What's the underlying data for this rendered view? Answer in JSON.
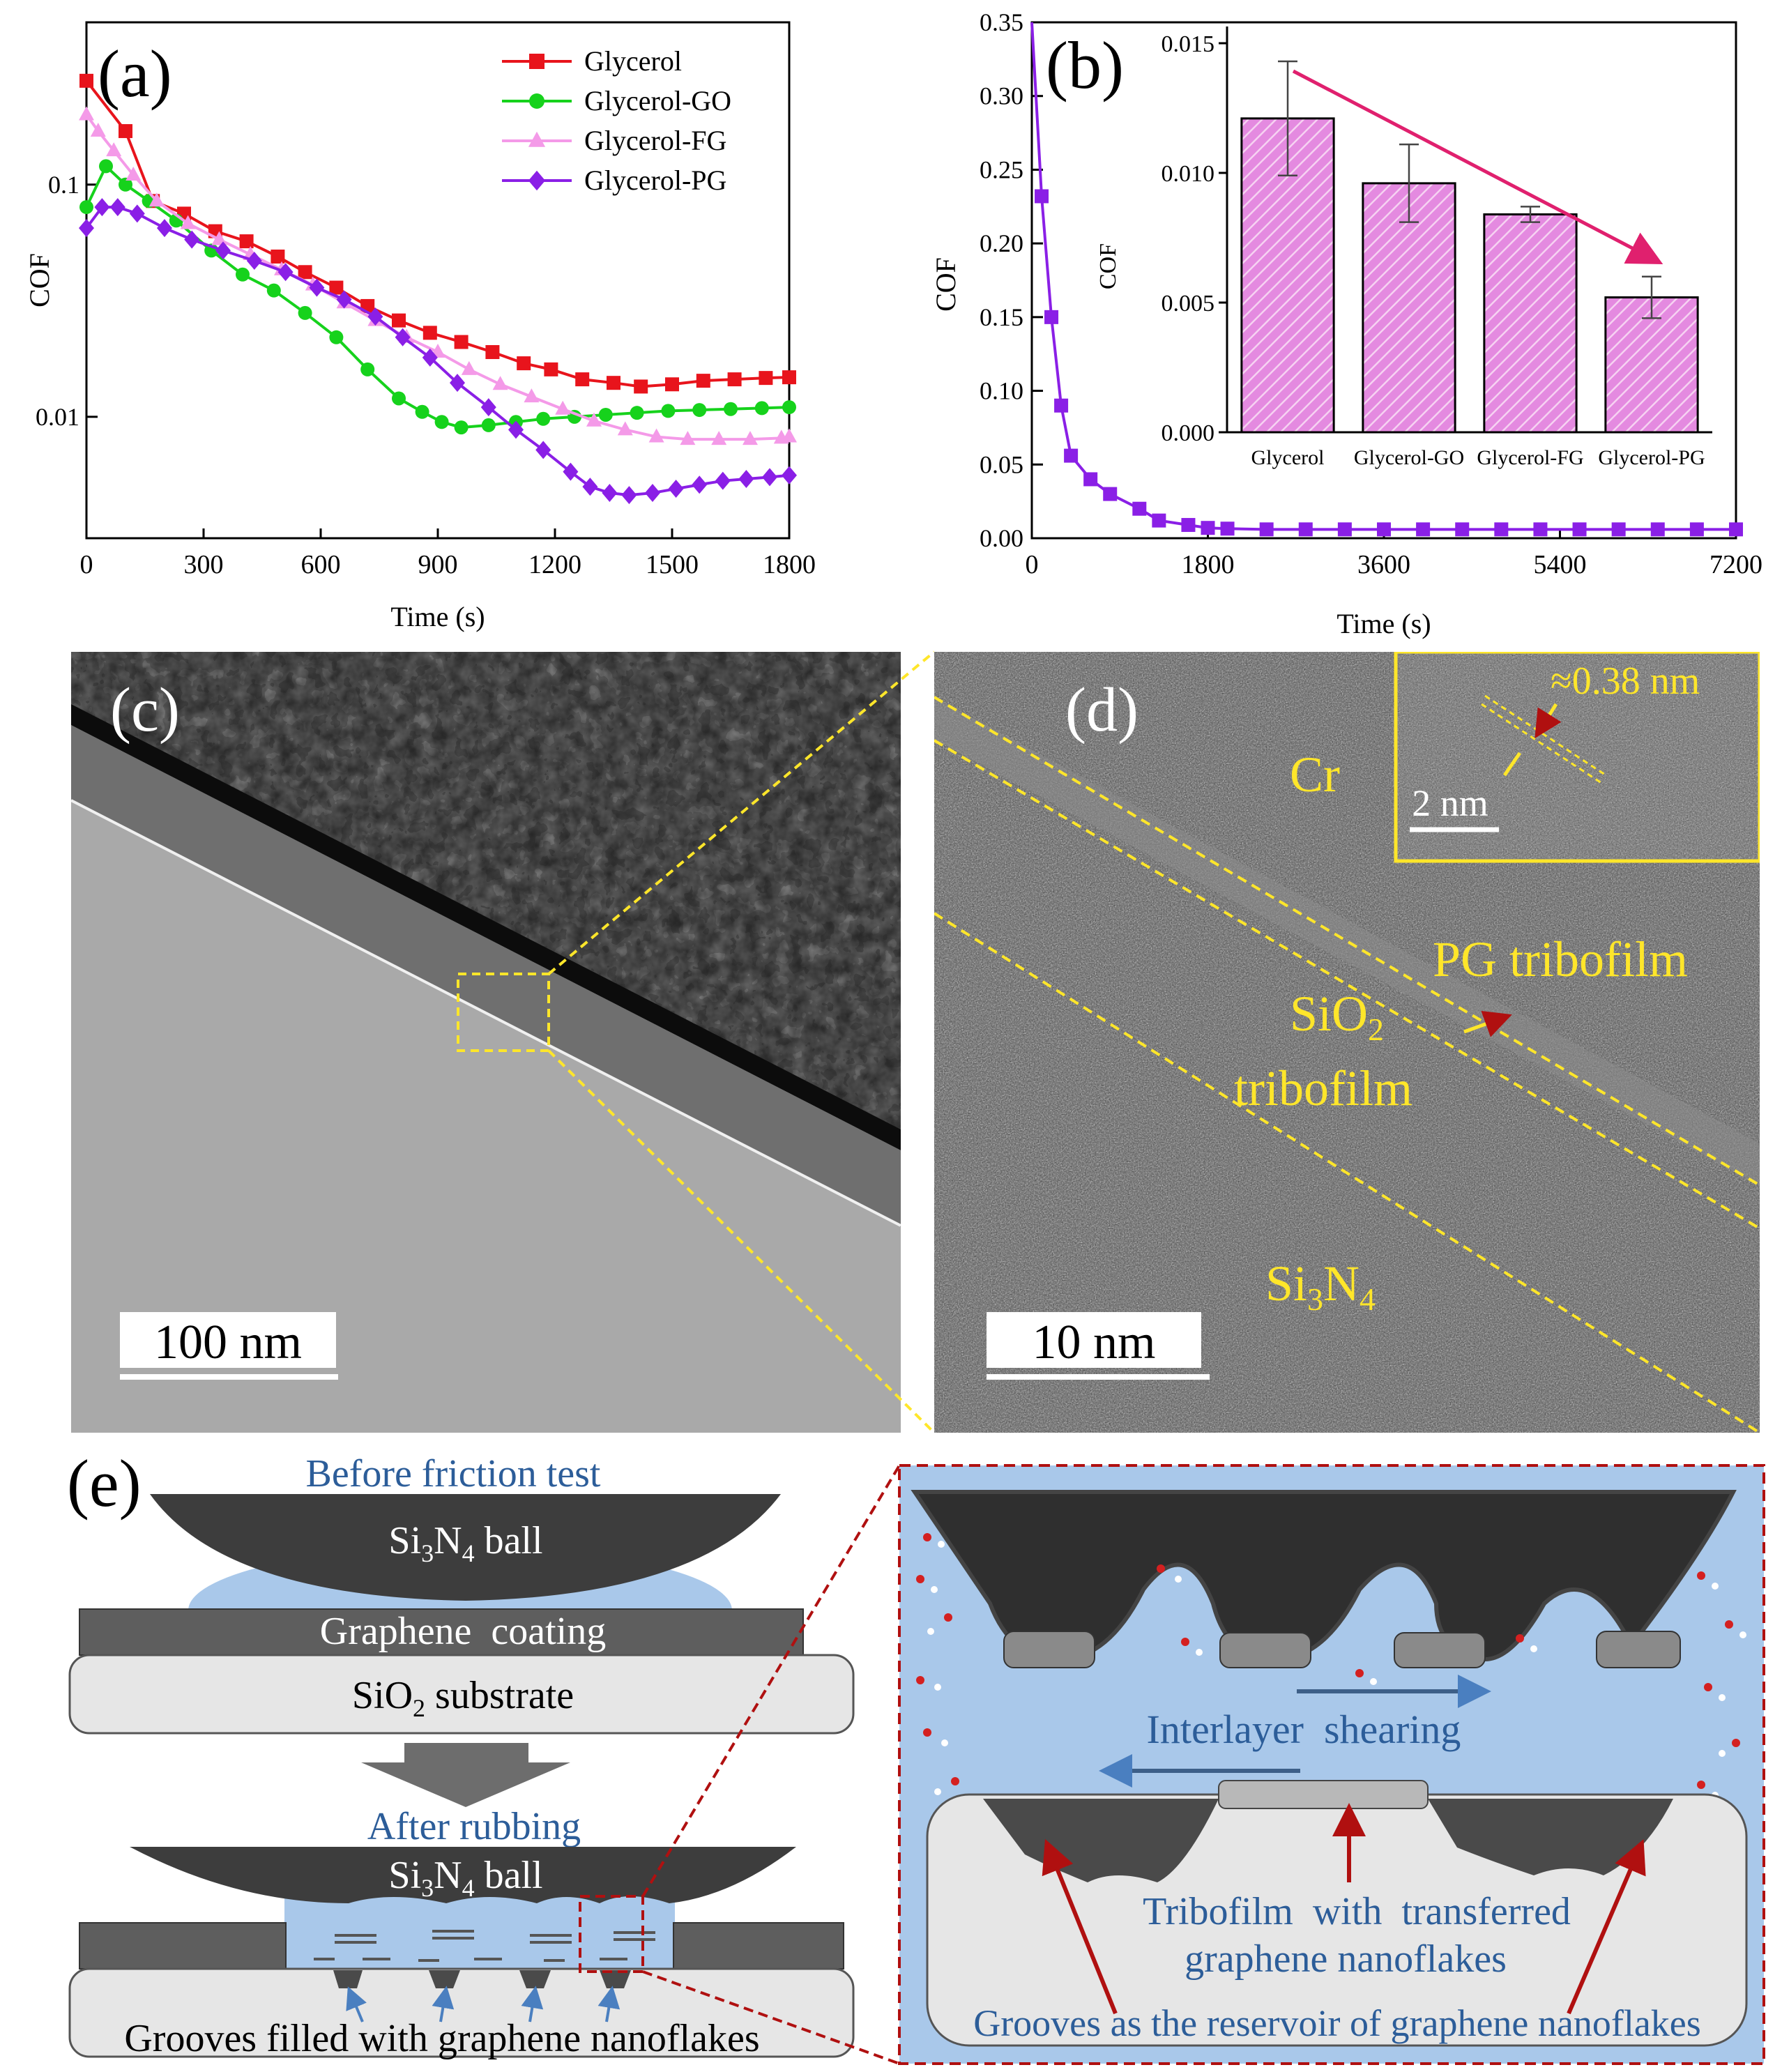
{
  "panel_a": {
    "label": "(a)",
    "xlabel": "Time (s)",
    "ylabel": "COF",
    "xticks": [
      "0",
      "300",
      "600",
      "900",
      "1200",
      "1500",
      "1800"
    ],
    "yticks": [
      "0.1",
      "0.01"
    ],
    "legend": [
      "Glycerol",
      "Glycerol-GO",
      "Glycerol-FG",
      "Glycerol-PG"
    ]
  },
  "panel_b": {
    "label": "(b)",
    "xlabel": "Time (s)",
    "ylabel": "COF",
    "xticks": [
      "0",
      "1800",
      "3600",
      "5400",
      "7200"
    ],
    "yticks": [
      "0.00",
      "0.05",
      "0.10",
      "0.15",
      "0.20",
      "0.25",
      "0.30",
      "0.35"
    ],
    "inset": {
      "ylabel": "COF",
      "yticks": [
        "0.000",
        "0.005",
        "0.010",
        "0.015"
      ],
      "categories": [
        "Glycerol",
        "Glycerol-GO",
        "Glycerol-FG",
        "Glycerol-PG"
      ]
    }
  },
  "panel_c": {
    "label": "(c)",
    "scale": "100 nm"
  },
  "panel_d": {
    "label": "(d)",
    "scale": "10 nm",
    "inset_scale": "2 nm",
    "spacing": "≈0.38 nm",
    "labels": {
      "cr": "Cr",
      "pg": "PG tribofilm",
      "sio2": "SiO",
      "sio2_sub": "2",
      "sio2_line2": "tribofilm",
      "si3n4": "Si",
      "si3n4_sub1": "3",
      "si3n4_n": "N",
      "si3n4_sub2": "4"
    }
  },
  "panel_e": {
    "label": "(e)",
    "before": "Before friction test",
    "ball_si": "Si",
    "ball_3": "3",
    "ball_n": "N",
    "ball_4": "4",
    "ball_word": " ball",
    "coating": "Graphene  coating",
    "substrate_pre": "SiO",
    "substrate_2": "2",
    "substrate_post": " substrate",
    "after": "After rubbing",
    "grooves": "Grooves filled with graphene nanoflakes",
    "shearing": "Interlayer  shearing",
    "tribofilm_1": "Tribofilm  with  transferred",
    "tribofilm_2": "graphene nanoflakes",
    "reservoir": "Grooves as the reservoir of graphene nanoflakes"
  },
  "chart_data": [
    {
      "type": "line",
      "title": "",
      "xlabel": "Time (s)",
      "ylabel": "COF",
      "yscale": "log",
      "xlim": [
        0,
        1800
      ],
      "ylim": [
        0.003,
        0.5
      ],
      "legend_position": "top-right",
      "series": [
        {
          "name": "Glycerol",
          "color": "#e8141c",
          "marker": "square",
          "x": [
            0,
            100,
            170,
            250,
            330,
            410,
            490,
            560,
            640,
            720,
            800,
            880,
            960,
            1040,
            1120,
            1190,
            1270,
            1350,
            1420,
            1500,
            1580,
            1660,
            1740,
            1800
          ],
          "y": [
            0.28,
            0.17,
            0.085,
            0.075,
            0.063,
            0.057,
            0.049,
            0.042,
            0.036,
            0.03,
            0.026,
            0.023,
            0.021,
            0.019,
            0.017,
            0.016,
            0.0145,
            0.014,
            0.0135,
            0.0138,
            0.0143,
            0.0145,
            0.0147,
            0.0148
          ]
        },
        {
          "name": "Glycerol-GO",
          "color": "#16d21c",
          "marker": "circle",
          "x": [
            0,
            50,
            100,
            160,
            230,
            320,
            400,
            480,
            560,
            640,
            720,
            800,
            860,
            910,
            960,
            1030,
            1100,
            1170,
            1250,
            1330,
            1410,
            1490,
            1570,
            1650,
            1730,
            1800
          ],
          "y": [
            0.08,
            0.12,
            0.1,
            0.085,
            0.07,
            0.052,
            0.041,
            0.035,
            0.028,
            0.022,
            0.016,
            0.012,
            0.0105,
            0.0095,
            0.009,
            0.0092,
            0.0095,
            0.0098,
            0.01,
            0.0102,
            0.0104,
            0.0106,
            0.0107,
            0.0108,
            0.0109,
            0.011
          ]
        },
        {
          "name": "Glycerol-FG",
          "color": "#f49ae8",
          "marker": "triangle",
          "x": [
            0,
            30,
            70,
            120,
            180,
            260,
            340,
            420,
            500,
            580,
            660,
            740,
            820,
            900,
            980,
            1060,
            1140,
            1220,
            1300,
            1380,
            1460,
            1540,
            1620,
            1700,
            1780,
            1800
          ],
          "y": [
            0.2,
            0.17,
            0.14,
            0.11,
            0.085,
            0.068,
            0.058,
            0.05,
            0.043,
            0.037,
            0.031,
            0.026,
            0.022,
            0.019,
            0.016,
            0.0138,
            0.0122,
            0.0108,
            0.0096,
            0.0088,
            0.0082,
            0.008,
            0.008,
            0.008,
            0.0081,
            0.0082
          ]
        },
        {
          "name": "Glycerol-PG",
          "color": "#8a1fe6",
          "marker": "diamond",
          "x": [
            0,
            40,
            80,
            130,
            200,
            270,
            350,
            430,
            510,
            590,
            660,
            740,
            810,
            880,
            950,
            1030,
            1100,
            1170,
            1240,
            1290,
            1340,
            1390,
            1450,
            1510,
            1570,
            1630,
            1690,
            1750,
            1800
          ],
          "y": [
            0.065,
            0.08,
            0.08,
            0.075,
            0.065,
            0.058,
            0.052,
            0.047,
            0.042,
            0.036,
            0.032,
            0.027,
            0.022,
            0.018,
            0.014,
            0.011,
            0.0088,
            0.0072,
            0.0058,
            0.005,
            0.0047,
            0.0046,
            0.0047,
            0.0049,
            0.0051,
            0.0053,
            0.0054,
            0.0055,
            0.0056
          ]
        }
      ]
    },
    {
      "type": "line",
      "xlabel": "Time (s)",
      "ylabel": "COF",
      "xlim": [
        0,
        7200
      ],
      "ylim": [
        0,
        0.35
      ],
      "series": [
        {
          "color": "#8a1fe6",
          "marker": "square",
          "x": [
            0,
            100,
            200,
            300,
            400,
            600,
            800,
            1100,
            1300,
            1600,
            1800,
            2000,
            2400,
            2800,
            3200,
            3600,
            4000,
            4400,
            4800,
            5200,
            5600,
            6000,
            6400,
            6800,
            7200
          ],
          "y": [
            0.35,
            0.232,
            0.15,
            0.09,
            0.056,
            0.04,
            0.03,
            0.02,
            0.012,
            0.009,
            0.007,
            0.0065,
            0.006,
            0.006,
            0.006,
            0.006,
            0.006,
            0.006,
            0.006,
            0.006,
            0.006,
            0.006,
            0.006,
            0.006,
            0.006
          ]
        }
      ]
    },
    {
      "type": "bar",
      "xlabel": "",
      "ylabel": "COF",
      "ylim": [
        0,
        0.015
      ],
      "categories": [
        "Glycerol",
        "Glycerol-GO",
        "Glycerol-FG",
        "Glycerol-PG"
      ],
      "values": [
        0.0121,
        0.0096,
        0.0084,
        0.0052
      ],
      "errors": [
        0.0022,
        0.0015,
        0.0003,
        0.0008
      ],
      "bar_color": "#e48ae0",
      "arrow_color": "#e0206e"
    }
  ]
}
